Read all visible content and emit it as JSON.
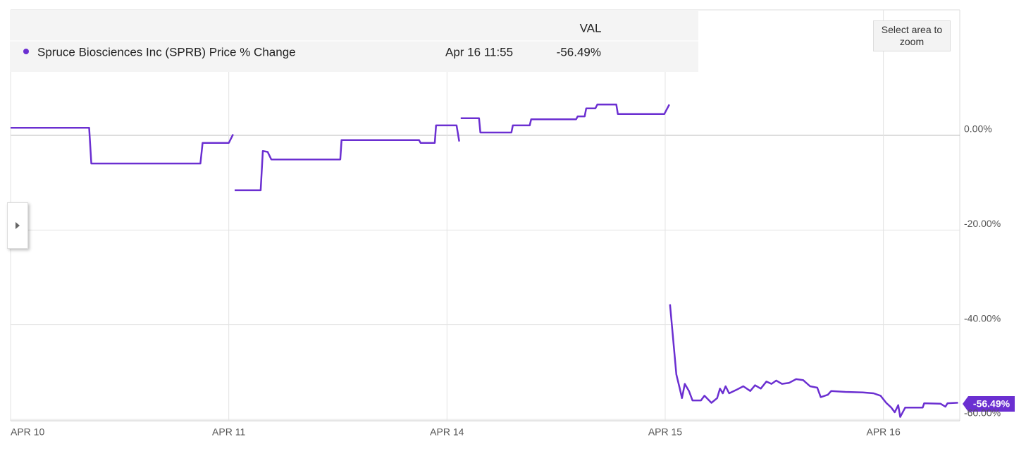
{
  "chart_data": {
    "type": "line",
    "legend": {
      "header": "VAL",
      "time": "Apr 16 11:55",
      "value": "-56.49%"
    },
    "zoom_hint": "Select area to zoom",
    "xlim": [
      0,
      4.35
    ],
    "xticks": [
      {
        "value": 0,
        "label": "APR 10"
      },
      {
        "value": 1,
        "label": "APR 11"
      },
      {
        "value": 2,
        "label": "APR 14"
      },
      {
        "value": 3,
        "label": "APR 15"
      },
      {
        "value": 4,
        "label": "APR 16"
      }
    ],
    "ylim": [
      -60.3,
      26.5
    ],
    "yticks": [
      {
        "value": 0,
        "label": "0.00%"
      },
      {
        "value": -20,
        "label": "-20.00%"
      },
      {
        "value": -40,
        "label": "-40.00%"
      },
      {
        "value": -60,
        "label": "-60.00%"
      }
    ],
    "grid": true,
    "series": [
      {
        "name": "Spruce Biosciences Inc (SPRB) Price % Change",
        "color": "#6b2fd1",
        "x": [
          0,
          0.36,
          0.37,
          0.87,
          0.88,
          1.0,
          1.02,
          null,
          1.027,
          1.146,
          1.156,
          1.178,
          1.195,
          1.511,
          1.517,
          1.872,
          1.879,
          1.944,
          1.95,
          2.044,
          2.056,
          null,
          2.063,
          2.147,
          2.153,
          2.295,
          2.302,
          2.379,
          2.386,
          2.592,
          2.599,
          2.631,
          2.638,
          2.68,
          2.689,
          2.776,
          2.783,
          2.996,
          3.019,
          null,
          3.022,
          3.051,
          3.067,
          3.077,
          3.09,
          3.109,
          3.125,
          3.164,
          3.18,
          3.212,
          3.238,
          3.251,
          3.264,
          3.277,
          3.293,
          3.325,
          3.358,
          3.39,
          3.412,
          3.438,
          3.464,
          3.487,
          3.509,
          3.535,
          3.567,
          3.6,
          3.632,
          3.664,
          3.697,
          3.713,
          3.745,
          3.761,
          3.826,
          3.906,
          3.955,
          3.987,
          4.013,
          4.036,
          4.052,
          4.068,
          4.077,
          4.1,
          4.18,
          4.187,
          4.262,
          4.284,
          4.294,
          4.342
        ],
        "values": [
          1.6,
          1.6,
          -5.95,
          -5.95,
          -1.6,
          -1.6,
          0.2,
          null,
          -11.6,
          -11.6,
          -3.3,
          -3.5,
          -5.1,
          -5.1,
          -1.0,
          -1.0,
          -1.6,
          -1.6,
          2.1,
          2.1,
          -1.3,
          null,
          3.6,
          3.6,
          0.6,
          0.6,
          2.1,
          2.1,
          3.4,
          3.4,
          4.0,
          4.0,
          5.7,
          5.7,
          6.5,
          6.5,
          4.5,
          4.5,
          6.5,
          null,
          -35.7,
          -50.5,
          -53.5,
          -55.5,
          -52.5,
          -54,
          -56,
          -56,
          -55,
          -56.5,
          -55.5,
          -53.5,
          -54.5,
          -53,
          -54.5,
          -53.8,
          -53,
          -54,
          -52.8,
          -53.5,
          -52,
          -52.5,
          -51.8,
          -52.5,
          -52.3,
          -51.5,
          -51.7,
          -53,
          -53.3,
          -55.3,
          -54.8,
          -54,
          -54.2,
          -54.3,
          -54.5,
          -55,
          -56.5,
          -57.5,
          -58.5,
          -57,
          -59.5,
          -57.5,
          -57.5,
          -56.6,
          -56.7,
          -57.3,
          -56.6,
          -56.49
        ]
      }
    ]
  }
}
